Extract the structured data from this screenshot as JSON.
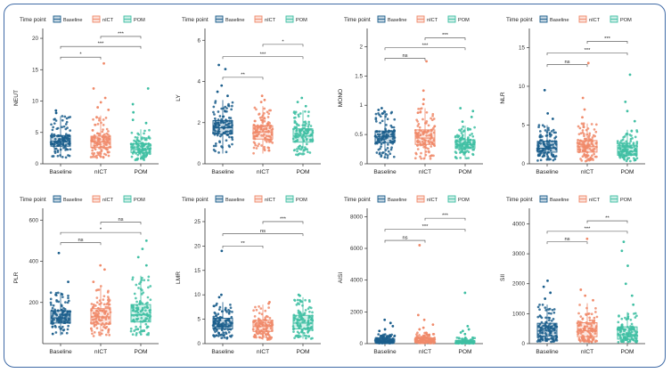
{
  "colors": {
    "baseline": "#1b5e8c",
    "nict": "#f08a6a",
    "pom": "#3fbfa3",
    "frame": "#3f6aa6"
  },
  "legend": {
    "title": "Time point",
    "items": [
      "Baseline",
      "nICT",
      "POM"
    ]
  },
  "chart_data": [
    {
      "type": "box",
      "ylabel": "NEUT",
      "categories": [
        "Baseline",
        "nICT",
        "POM"
      ],
      "ylim": [
        0,
        21
      ],
      "yticks": [
        0,
        5,
        10,
        15,
        20
      ],
      "boxes": [
        {
          "q1": 2.8,
          "median": 3.6,
          "q3": 4.5,
          "whisker_low": 1.0,
          "whisker_high": 7.6
        },
        {
          "q1": 2.6,
          "median": 3.5,
          "q3": 4.4,
          "whisker_low": 0.9,
          "whisker_high": 7.7
        },
        {
          "q1": 1.8,
          "median": 2.3,
          "q3": 3.2,
          "whisker_low": 0.6,
          "whisker_high": 5.5
        }
      ],
      "outliers": [
        [
          8.5,
          8.1
        ],
        [
          16.0,
          12.0,
          10.5,
          9.8,
          9.0,
          8.6
        ],
        [
          12.0,
          9.5,
          8.2,
          7.0,
          6.5
        ]
      ],
      "comparisons": [
        {
          "pair": [
            "Baseline",
            "nICT"
          ],
          "label": "*",
          "y": 17.0
        },
        {
          "pair": [
            "Baseline",
            "POM"
          ],
          "label": "***",
          "y": 18.7
        },
        {
          "pair": [
            "nICT",
            "POM"
          ],
          "label": "***",
          "y": 20.3
        }
      ]
    },
    {
      "type": "box",
      "ylabel": "LY",
      "categories": [
        "Baseline",
        "nICT",
        "POM"
      ],
      "ylim": [
        0,
        6.4
      ],
      "yticks": [
        0,
        2,
        4,
        6
      ],
      "boxes": [
        {
          "q1": 1.45,
          "median": 1.75,
          "q3": 2.1,
          "whisker_low": 0.5,
          "whisker_high": 3.1
        },
        {
          "q1": 1.2,
          "median": 1.55,
          "q3": 1.85,
          "whisker_low": 0.5,
          "whisker_high": 2.8
        },
        {
          "q1": 1.05,
          "median": 1.35,
          "q3": 1.7,
          "whisker_low": 0.4,
          "whisker_high": 2.6
        }
      ],
      "outliers": [
        [
          4.8,
          4.6,
          3.8,
          3.5,
          3.3
        ],
        [
          3.3,
          3.1,
          3.0
        ],
        [
          3.2,
          3.0,
          2.8
        ]
      ],
      "comparisons": [
        {
          "pair": [
            "Baseline",
            "nICT"
          ],
          "label": "**",
          "y": 4.2
        },
        {
          "pair": [
            "Baseline",
            "POM"
          ],
          "label": "***",
          "y": 5.2
        },
        {
          "pair": [
            "nICT",
            "POM"
          ],
          "label": "*",
          "y": 5.8
        }
      ]
    },
    {
      "type": "box",
      "ylabel": "MONO",
      "categories": [
        "Baseline",
        "nICT",
        "POM"
      ],
      "ylim": [
        0,
        2.25
      ],
      "yticks": [
        0.0,
        0.5,
        1.0,
        1.5,
        2.0
      ],
      "boxes": [
        {
          "q1": 0.36,
          "median": 0.46,
          "q3": 0.56,
          "whisker_low": 0.1,
          "whisker_high": 0.9
        },
        {
          "q1": 0.33,
          "median": 0.44,
          "q3": 0.58,
          "whisker_low": 0.08,
          "whisker_high": 0.95
        },
        {
          "q1": 0.26,
          "median": 0.33,
          "q3": 0.41,
          "whisker_low": 0.08,
          "whisker_high": 0.65
        }
      ],
      "outliers": [
        [
          0.95,
          0.92
        ],
        [
          1.75,
          1.25,
          1.1,
          1.02
        ],
        [
          0.95,
          0.9,
          0.8,
          0.72
        ]
      ],
      "comparisons": [
        {
          "pair": [
            "Baseline",
            "nICT"
          ],
          "label": "ns",
          "y": 1.8
        },
        {
          "pair": [
            "Baseline",
            "POM"
          ],
          "label": "***",
          "y": 1.98
        },
        {
          "pair": [
            "nICT",
            "POM"
          ],
          "label": "***",
          "y": 2.15
        }
      ]
    },
    {
      "type": "box",
      "ylabel": "NLR",
      "categories": [
        "Baseline",
        "nICT",
        "POM"
      ],
      "ylim": [
        0,
        17
      ],
      "yticks": [
        0,
        5,
        10,
        15
      ],
      "boxes": [
        {
          "q1": 1.5,
          "median": 2.0,
          "q3": 2.9,
          "whisker_low": 0.4,
          "whisker_high": 5.0
        },
        {
          "q1": 1.5,
          "median": 2.2,
          "q3": 3.0,
          "whisker_low": 0.3,
          "whisker_high": 5.2
        },
        {
          "q1": 1.1,
          "median": 1.6,
          "q3": 2.4,
          "whisker_low": 0.3,
          "whisker_high": 4.4
        }
      ],
      "outliers": [
        [
          9.5,
          6.5,
          5.8
        ],
        [
          13.0,
          8.5,
          7.0,
          6.0
        ],
        [
          11.5,
          8.0,
          6.8,
          5.5
        ]
      ],
      "comparisons": [
        {
          "pair": [
            "Baseline",
            "nICT"
          ],
          "label": "ns",
          "y": 12.8
        },
        {
          "pair": [
            "Baseline",
            "POM"
          ],
          "label": "***",
          "y": 14.3
        },
        {
          "pair": [
            "nICT",
            "POM"
          ],
          "label": "***",
          "y": 15.8
        }
      ]
    },
    {
      "type": "box",
      "ylabel": "PLR",
      "categories": [
        "Baseline",
        "nICT",
        "POM"
      ],
      "ylim": [
        0,
        640
      ],
      "yticks": [
        200,
        400,
        600
      ],
      "boxes": [
        {
          "q1": 100,
          "median": 125,
          "q3": 160,
          "whisker_low": 40,
          "whisker_high": 250
        },
        {
          "q1": 95,
          "median": 130,
          "q3": 170,
          "whisker_low": 35,
          "whisker_high": 280
        },
        {
          "q1": 105,
          "median": 140,
          "q3": 190,
          "whisker_low": 40,
          "whisker_high": 330
        }
      ],
      "outliers": [
        [
          440,
          300
        ],
        [
          380,
          360,
          300
        ],
        [
          500,
          460,
          420,
          380
        ]
      ],
      "comparisons": [
        {
          "pair": [
            "Baseline",
            "nICT"
          ],
          "label": "ns",
          "y": 490
        },
        {
          "pair": [
            "Baseline",
            "POM"
          ],
          "label": "*",
          "y": 540
        },
        {
          "pair": [
            "nICT",
            "POM"
          ],
          "label": "ns",
          "y": 590
        }
      ]
    },
    {
      "type": "box",
      "ylabel": "LMR",
      "categories": [
        "Baseline",
        "nICT",
        "POM"
      ],
      "ylim": [
        0,
        27
      ],
      "yticks": [
        0,
        5,
        10,
        15,
        20,
        25
      ],
      "boxes": [
        {
          "q1": 3.0,
          "median": 4.0,
          "q3": 5.2,
          "whisker_low": 1.0,
          "whisker_high": 8.5
        },
        {
          "q1": 2.5,
          "median": 3.5,
          "q3": 4.8,
          "whisker_low": 0.8,
          "whisker_high": 8.0
        },
        {
          "q1": 3.0,
          "median": 4.2,
          "q3": 5.8,
          "whisker_low": 1.0,
          "whisker_high": 9.5
        }
      ],
      "outliers": [
        [
          19.0,
          10.0,
          9.5
        ],
        [
          8.5,
          8.2
        ],
        [
          10.0,
          9.8
        ]
      ],
      "comparisons": [
        {
          "pair": [
            "Baseline",
            "nICT"
          ],
          "label": "**",
          "y": 20.0
        },
        {
          "pair": [
            "Baseline",
            "POM"
          ],
          "label": "ns",
          "y": 22.5
        },
        {
          "pair": [
            "nICT",
            "POM"
          ],
          "label": "***",
          "y": 25.0
        }
      ]
    },
    {
      "type": "box",
      "ylabel": "AISI",
      "categories": [
        "Baseline",
        "nICT",
        "POM"
      ],
      "ylim": [
        0,
        8300
      ],
      "yticks": [
        0,
        2000,
        4000,
        6000,
        8000
      ],
      "boxes": [
        {
          "q1": 100,
          "median": 180,
          "q3": 300,
          "whisker_low": 20,
          "whisker_high": 600
        },
        {
          "q1": 90,
          "median": 200,
          "q3": 350,
          "whisker_low": 20,
          "whisker_high": 700
        },
        {
          "q1": 50,
          "median": 100,
          "q3": 180,
          "whisker_low": 10,
          "whisker_high": 380
        }
      ],
      "outliers": [
        [
          1500,
          1300,
          1100,
          900,
          800
        ],
        [
          6200,
          1800,
          1500,
          1200,
          1000,
          900
        ],
        [
          3200,
          1100,
          900,
          800,
          700,
          600
        ]
      ],
      "comparisons": [
        {
          "pair": [
            "Baseline",
            "nICT"
          ],
          "label": "ns",
          "y": 6500
        },
        {
          "pair": [
            "Baseline",
            "POM"
          ],
          "label": "***",
          "y": 7200
        },
        {
          "pair": [
            "nICT",
            "POM"
          ],
          "label": "***",
          "y": 7900
        }
      ]
    },
    {
      "type": "box",
      "ylabel": "SII",
      "categories": [
        "Baseline",
        "nICT",
        "POM"
      ],
      "ylim": [
        0,
        4400
      ],
      "yticks": [
        0,
        1000,
        2000,
        3000,
        4000
      ],
      "boxes": [
        {
          "q1": 250,
          "median": 420,
          "q3": 680,
          "whisker_low": 60,
          "whisker_high": 1300
        },
        {
          "q1": 230,
          "median": 430,
          "q3": 700,
          "whisker_low": 50,
          "whisker_high": 1350
        },
        {
          "q1": 150,
          "median": 300,
          "q3": 560,
          "whisker_low": 40,
          "whisker_high": 1050
        }
      ],
      "outliers": [
        [
          2100,
          1900,
          1700,
          1500
        ],
        [
          3500,
          1800,
          1600,
          1450
        ],
        [
          3400,
          3100,
          2600,
          2000,
          1600,
          1300
        ]
      ],
      "comparisons": [
        {
          "pair": [
            "Baseline",
            "nICT"
          ],
          "label": "ns",
          "y": 3400
        },
        {
          "pair": [
            "Baseline",
            "POM"
          ],
          "label": "***",
          "y": 3750
        },
        {
          "pair": [
            "nICT",
            "POM"
          ],
          "label": "**",
          "y": 4100
        }
      ]
    }
  ]
}
